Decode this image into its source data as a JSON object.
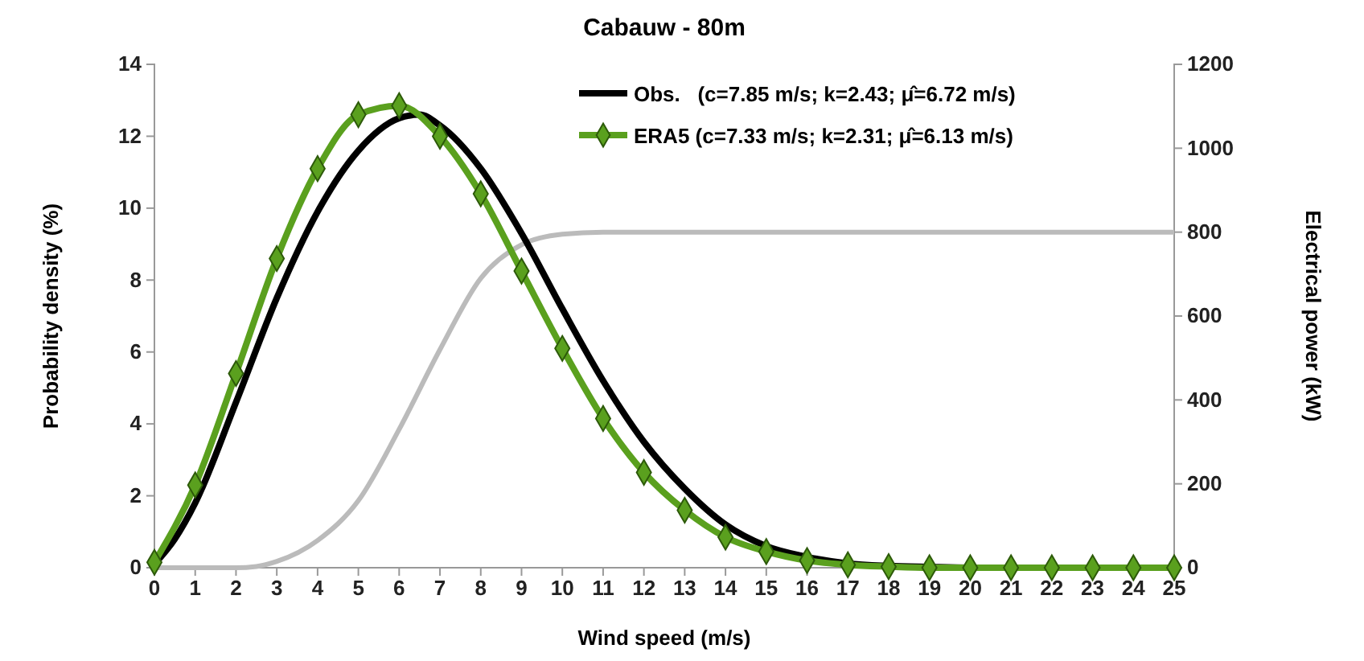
{
  "chart_data": {
    "type": "line",
    "title": "Cabauw - 80m",
    "xlabel": "Wind speed (m/s)",
    "ylabel": "Probability density (%)",
    "y2label": "Electrical power (kW)",
    "xlim": [
      0,
      25
    ],
    "xticks": [
      0,
      1,
      2,
      3,
      4,
      5,
      6,
      7,
      8,
      9,
      10,
      11,
      12,
      13,
      14,
      15,
      16,
      17,
      18,
      19,
      20,
      21,
      22,
      23,
      24,
      25
    ],
    "ylim": [
      0,
      14
    ],
    "yticks": [
      0,
      2,
      4,
      6,
      8,
      10,
      12,
      14
    ],
    "y2lim": [
      0,
      1200
    ],
    "y2ticks": [
      0,
      200,
      400,
      600,
      800,
      1000,
      1200
    ],
    "grid": false,
    "legend": "top right",
    "line_style": "solid",
    "series": [
      {
        "name": "Obs.   (c=7.85 m/s; k=2.43; μ̂=6.72 m/s)",
        "color": "#000000",
        "marker": "none",
        "x": [
          0,
          0.5,
          1,
          2,
          3,
          4,
          5,
          6,
          6.5,
          7,
          8,
          9,
          10,
          11,
          12,
          13,
          14,
          15,
          16,
          17,
          18,
          19,
          20,
          21,
          22,
          23,
          24,
          25
        ],
        "values": [
          0.1,
          0.8,
          1.8,
          4.6,
          7.5,
          9.9,
          11.6,
          12.5,
          12.6,
          12.3,
          11.1,
          9.3,
          7.2,
          5.2,
          3.5,
          2.2,
          1.2,
          0.6,
          0.3,
          0.12,
          0.05,
          0.02,
          0,
          0,
          0,
          0,
          0,
          0
        ]
      },
      {
        "name": "ERA5 (c=7.33 m/s; k=2.31; μ̂=6.13 m/s)",
        "color": "#5aa01e",
        "marker": "diamond",
        "x": [
          0,
          1,
          2,
          3,
          4,
          5,
          6,
          7,
          8,
          9,
          10,
          11,
          12,
          13,
          14,
          15,
          16,
          17,
          18,
          19,
          20,
          21,
          22,
          23,
          24,
          25
        ],
        "values": [
          0.15,
          2.3,
          5.4,
          8.6,
          11.1,
          12.6,
          12.85,
          12.0,
          10.4,
          8.25,
          6.1,
          4.15,
          2.65,
          1.6,
          0.85,
          0.45,
          0.2,
          0.08,
          0.03,
          0,
          0,
          0,
          0,
          0,
          0,
          0
        ]
      },
      {
        "color": "#bbbbbb",
        "axis": "y2",
        "marker": "none",
        "x": [
          0,
          1,
          2,
          2.5,
          3,
          4,
          5,
          6,
          7,
          8,
          9,
          10,
          11,
          12,
          13,
          14,
          15,
          16,
          17,
          18,
          19,
          20,
          21,
          22,
          23,
          24,
          25
        ],
        "values": [
          0,
          0,
          0,
          3,
          15,
          65,
          160,
          330,
          520,
          690,
          770,
          795,
          800,
          800,
          800,
          800,
          800,
          800,
          800,
          800,
          800,
          800,
          800,
          800,
          800,
          800,
          800
        ]
      }
    ]
  }
}
